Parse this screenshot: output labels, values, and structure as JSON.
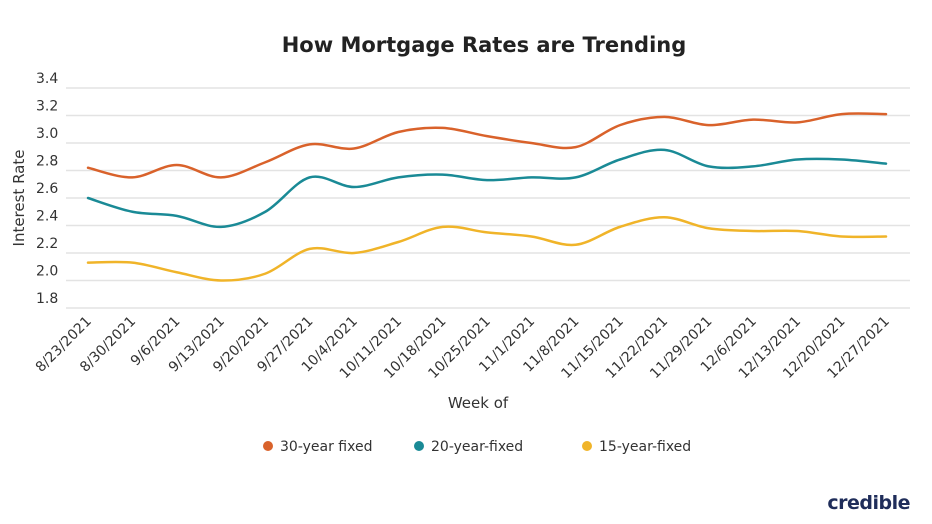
{
  "chart_data": {
    "type": "line",
    "title": "How Mortgage Rates are Trending",
    "xlabel": "Week of",
    "ylabel": "Interest Rate",
    "ylim": [
      1.8,
      3.4
    ],
    "yticks": [
      "1.8",
      "2.0",
      "2.2",
      "2.4",
      "2.6",
      "2.8",
      "3.0",
      "3.2",
      "3.4"
    ],
    "grid": true,
    "legend_position": "bottom",
    "categories": [
      "8/23/2021",
      "8/30/2021",
      "9/6/2021",
      "9/13/2021",
      "9/20/2021",
      "9/27/2021",
      "10/4/2021",
      "10/11/2021",
      "10/18/2021",
      "10/25/2021",
      "11/1/2021",
      "11/8/2021",
      "11/15/2021",
      "11/22/2021",
      "11/29/2021",
      "12/6/2021",
      "12/13/2021",
      "12/20/2021",
      "12/27/2021"
    ],
    "series": [
      {
        "name": "30-year fixed",
        "color": "#d9622b",
        "values": [
          2.82,
          2.75,
          2.84,
          2.75,
          2.86,
          2.99,
          2.96,
          3.08,
          3.11,
          3.05,
          3.0,
          2.97,
          3.13,
          3.19,
          3.13,
          3.17,
          3.15,
          3.21,
          3.21
        ]
      },
      {
        "name": "20-year-fixed",
        "color": "#1a8a96",
        "values": [
          2.6,
          2.5,
          2.47,
          2.39,
          2.5,
          2.75,
          2.68,
          2.75,
          2.77,
          2.73,
          2.75,
          2.75,
          2.88,
          2.95,
          2.83,
          2.83,
          2.88,
          2.88,
          2.85
        ]
      },
      {
        "name": "15-year-fixed",
        "color": "#f0b429",
        "values": [
          2.13,
          2.13,
          2.06,
          2.0,
          2.05,
          2.23,
          2.2,
          2.28,
          2.39,
          2.35,
          2.32,
          2.26,
          2.39,
          2.46,
          2.38,
          2.36,
          2.36,
          2.32,
          2.32
        ]
      }
    ]
  },
  "logo": {
    "text": "credible"
  }
}
